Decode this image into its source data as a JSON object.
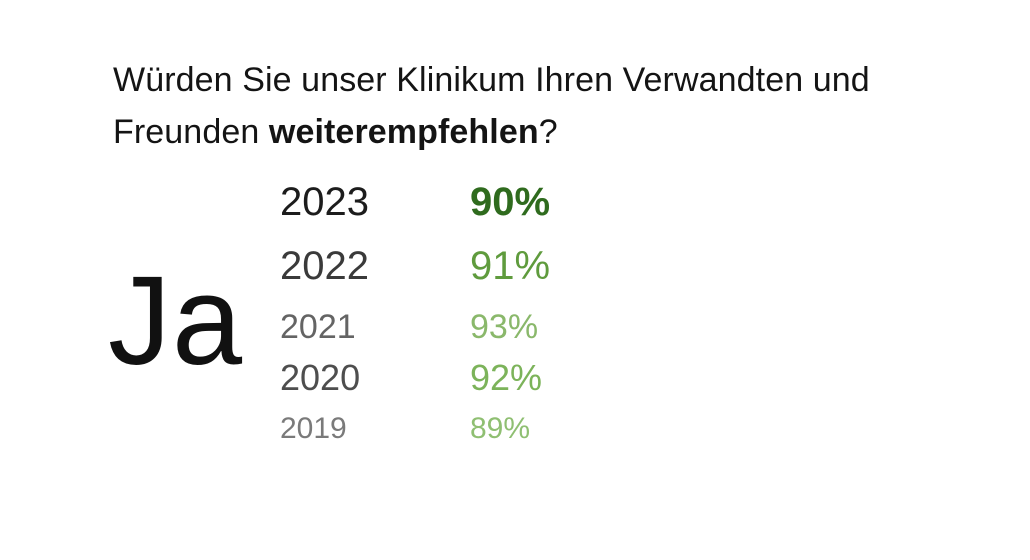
{
  "question": {
    "prefix": "Würden Sie unser Klinikum Ihren Verwandten und Freunden ",
    "emphasis": "weiterempfehlen",
    "suffix": "?"
  },
  "answer": "Ja",
  "results": [
    {
      "year": "2023",
      "percent": "90%",
      "color": "#2f6b1e"
    },
    {
      "year": "2022",
      "percent": "91%",
      "color": "#5f9b3d"
    },
    {
      "year": "2021",
      "percent": "93%",
      "color": "#8ab86b"
    },
    {
      "year": "2020",
      "percent": "92%",
      "color": "#7cb35a"
    },
    {
      "year": "2019",
      "percent": "89%",
      "color": "#8fbf72"
    }
  ]
}
